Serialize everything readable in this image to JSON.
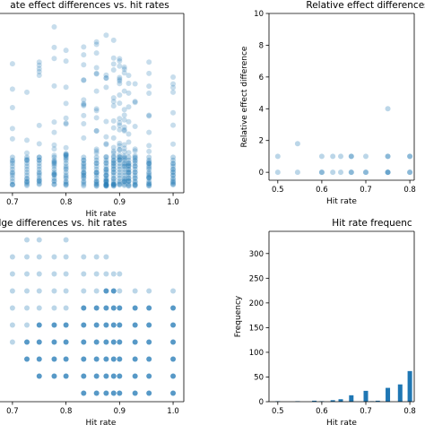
{
  "chart_data": [
    {
      "id": "panel-top-left",
      "type": "scatter",
      "title": "ate effect differences vs. hit rates",
      "xlabel": "Hit rate",
      "ylabel": "",
      "xlim": [
        0.66,
        1.02
      ],
      "ylim": [
        -0.5,
        10.2
      ],
      "xticks": [
        "0.7",
        "0.8",
        "0.9",
        "1.0"
      ],
      "xtick_values": [
        0.7,
        0.8,
        0.9,
        1.0
      ],
      "yticks": [],
      "grid": false,
      "color": "#1f77b4",
      "columns": [
        {
          "x": 0.67,
          "ymax": 6.4,
          "n": 6
        },
        {
          "x": 0.7,
          "ymax": 7.2,
          "n": 8
        },
        {
          "x": 0.727,
          "ymax": 5.5,
          "n": 8
        },
        {
          "x": 0.75,
          "ymax": 7.3,
          "n": 12
        },
        {
          "x": 0.778,
          "ymax": 9.4,
          "n": 16
        },
        {
          "x": 0.8,
          "ymax": 8.0,
          "n": 18
        },
        {
          "x": 0.833,
          "ymax": 8.2,
          "n": 20
        },
        {
          "x": 0.857,
          "ymax": 8.5,
          "n": 22
        },
        {
          "x": 0.875,
          "ymax": 8.9,
          "n": 25
        },
        {
          "x": 0.889,
          "ymax": 8.6,
          "n": 25
        },
        {
          "x": 0.9,
          "ymax": 7.5,
          "n": 22
        },
        {
          "x": 0.909,
          "ymax": 7.0,
          "n": 20
        },
        {
          "x": 0.917,
          "ymax": 6.5,
          "n": 18
        },
        {
          "x": 0.929,
          "ymax": 6.0,
          "n": 15
        },
        {
          "x": 0.955,
          "ymax": 7.3,
          "n": 20
        },
        {
          "x": 1.0,
          "ymax": 6.4,
          "n": 14
        }
      ]
    },
    {
      "id": "panel-top-right",
      "type": "scatter",
      "title": "Relative effect differences",
      "xlabel": "Hit rate",
      "ylabel": "Relative effect difference",
      "xlim": [
        0.48,
        0.81
      ],
      "ylim": [
        -0.5,
        10
      ],
      "xticks": [
        "0.5",
        "0.6",
        "0.7",
        "0.8"
      ],
      "xtick_values": [
        0.5,
        0.6,
        0.7,
        0.8
      ],
      "yticks": [
        "0",
        "2",
        "4",
        "6",
        "8",
        "10"
      ],
      "ytick_values": [
        0,
        2,
        4,
        6,
        8,
        10
      ],
      "grid": false,
      "color": "#1f77b4",
      "points": [
        {
          "x": 0.5,
          "y": 1.0
        },
        {
          "x": 0.5,
          "y": 0.0
        },
        {
          "x": 0.545,
          "y": 1.8
        },
        {
          "x": 0.545,
          "y": 0.0
        },
        {
          "x": 0.6,
          "y": 1.0
        },
        {
          "x": 0.6,
          "y": 0.0
        },
        {
          "x": 0.6,
          "y": 0.0
        },
        {
          "x": 0.625,
          "y": 1.0
        },
        {
          "x": 0.625,
          "y": 0.0
        },
        {
          "x": 0.643,
          "y": 1.0
        },
        {
          "x": 0.643,
          "y": 0.0
        },
        {
          "x": 0.667,
          "y": 1.0
        },
        {
          "x": 0.667,
          "y": 1.0
        },
        {
          "x": 0.667,
          "y": 0.0
        },
        {
          "x": 0.667,
          "y": 0.0
        },
        {
          "x": 0.7,
          "y": 1.0
        },
        {
          "x": 0.7,
          "y": 0.0
        },
        {
          "x": 0.7,
          "y": 0.0
        },
        {
          "x": 0.75,
          "y": 4.0
        },
        {
          "x": 0.75,
          "y": 1.0
        },
        {
          "x": 0.75,
          "y": 1.0
        },
        {
          "x": 0.75,
          "y": 0.0
        },
        {
          "x": 0.75,
          "y": 0.0
        },
        {
          "x": 0.75,
          "y": 0.0
        },
        {
          "x": 0.8,
          "y": 1.0
        },
        {
          "x": 0.8,
          "y": 1.0
        },
        {
          "x": 0.8,
          "y": 0.0
        },
        {
          "x": 0.8,
          "y": 0.0
        }
      ]
    },
    {
      "id": "panel-bottom-left",
      "type": "scatter",
      "title": "lge differences vs. hit rates",
      "xlabel": "Hit rate",
      "ylabel": "",
      "xlim": [
        0.66,
        1.02
      ],
      "ylim": [
        0,
        10
      ],
      "xticks": [
        "0.7",
        "0.8",
        "0.9",
        "1.0"
      ],
      "xtick_values": [
        0.7,
        0.8,
        0.9,
        1.0
      ],
      "yticks": [],
      "grid": false,
      "color": "#1f77b4",
      "columns": [
        {
          "x": 0.667,
          "ymin": 4,
          "ymax": 8,
          "dark": 3
        },
        {
          "x": 0.7,
          "ymin": 3,
          "ymax": 8,
          "dark": 3
        },
        {
          "x": 0.727,
          "ymin": 2,
          "ymax": 9,
          "dark": 4
        },
        {
          "x": 0.75,
          "ymin": 1,
          "ymax": 9,
          "dark": 5
        },
        {
          "x": 0.778,
          "ymin": 1,
          "ymax": 8,
          "dark": 5
        },
        {
          "x": 0.8,
          "ymin": 1,
          "ymax": 9,
          "dark": 5
        },
        {
          "x": 0.833,
          "ymin": 0,
          "ymax": 8,
          "dark": 6
        },
        {
          "x": 0.857,
          "ymin": 0,
          "ymax": 8,
          "dark": 6
        },
        {
          "x": 0.875,
          "ymin": 0,
          "ymax": 8,
          "dark": 7
        },
        {
          "x": 0.889,
          "ymin": 0,
          "ymax": 7,
          "dark": 7
        },
        {
          "x": 0.9,
          "ymin": 0,
          "ymax": 7,
          "dark": 6
        },
        {
          "x": 0.929,
          "ymin": 0,
          "ymax": 6,
          "dark": 6
        },
        {
          "x": 0.955,
          "ymin": 0,
          "ymax": 6,
          "dark": 6
        },
        {
          "x": 1.0,
          "ymin": 0,
          "ymax": 6,
          "dark": 6
        }
      ]
    },
    {
      "id": "panel-bottom-right",
      "type": "bar",
      "title": "Hit rate frequenc",
      "xlabel": "Hit rate",
      "ylabel": "Frequency",
      "xlim": [
        0.48,
        0.81
      ],
      "ylim": [
        0,
        345
      ],
      "xticks": [
        "0.5",
        "0.6",
        "0.7",
        "0.8"
      ],
      "xtick_values": [
        0.5,
        0.6,
        0.7,
        0.8
      ],
      "yticks": [
        "0",
        "50",
        "100",
        "150",
        "200",
        "250",
        "300"
      ],
      "ytick_values": [
        0,
        50,
        100,
        150,
        200,
        250,
        300
      ],
      "grid": false,
      "color": "#1f77b4",
      "bars": [
        {
          "x": 0.5,
          "value": 1
        },
        {
          "x": 0.545,
          "value": 1
        },
        {
          "x": 0.583,
          "value": 2
        },
        {
          "x": 0.6,
          "value": 1
        },
        {
          "x": 0.625,
          "value": 3
        },
        {
          "x": 0.643,
          "value": 5
        },
        {
          "x": 0.667,
          "value": 13
        },
        {
          "x": 0.7,
          "value": 22
        },
        {
          "x": 0.714,
          "value": 1
        },
        {
          "x": 0.727,
          "value": 2
        },
        {
          "x": 0.75,
          "value": 28
        },
        {
          "x": 0.778,
          "value": 35
        },
        {
          "x": 0.8,
          "value": 62
        }
      ]
    }
  ]
}
